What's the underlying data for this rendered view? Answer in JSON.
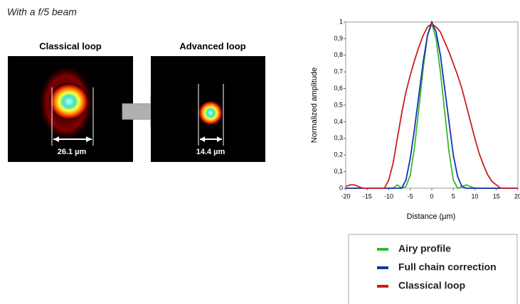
{
  "slide": {
    "caption": "With a f/5 beam",
    "images": [
      {
        "label": "Classical loop",
        "measure": "26.1 µm"
      },
      {
        "label": "Advanced loop",
        "measure": "14.4 µm"
      }
    ]
  },
  "chart_data": {
    "type": "line",
    "ylabel": "Normalized amplitude",
    "xlabel": "Distance (µm)",
    "x": [
      -20,
      -19,
      -18,
      -17,
      -16,
      -15,
      -14,
      -13,
      -12,
      -11,
      -10,
      -9,
      -8,
      -7,
      -6,
      -5,
      -4,
      -3,
      -2,
      -1,
      0,
      1,
      2,
      3,
      4,
      5,
      6,
      7,
      8,
      9,
      10,
      11,
      12,
      13,
      14,
      15,
      16,
      17,
      18,
      19,
      20
    ],
    "series": [
      {
        "name": "Airy profile",
        "color": "#33bb33",
        "values": [
          0,
          0,
          0,
          0,
          0,
          0,
          0,
          0,
          0,
          0,
          0,
          0,
          0.02,
          0,
          0.01,
          0.08,
          0.25,
          0.48,
          0.72,
          0.92,
          0.99,
          0.9,
          0.7,
          0.46,
          0.22,
          0.05,
          0,
          0.01,
          0.02,
          0.01,
          0,
          0,
          0,
          0,
          0,
          0,
          0,
          0,
          0,
          0,
          0
        ]
      },
      {
        "name": "Full chain correction",
        "color": "#1a2fb0",
        "values": [
          0,
          0,
          0,
          0,
          0,
          0,
          0,
          0,
          0,
          0,
          0,
          0,
          0,
          0,
          0.05,
          0.18,
          0.36,
          0.56,
          0.76,
          0.92,
          1,
          0.94,
          0.8,
          0.6,
          0.4,
          0.2,
          0.07,
          0.01,
          0,
          0,
          0,
          0,
          0,
          0,
          0,
          0,
          0,
          0,
          0,
          0,
          0
        ]
      },
      {
        "name": "Classical loop",
        "color": "#cc1f1f",
        "values": [
          0.01,
          0.02,
          0.02,
          0.01,
          0,
          0,
          0,
          0,
          0,
          0,
          0.05,
          0.15,
          0.3,
          0.45,
          0.58,
          0.68,
          0.77,
          0.85,
          0.92,
          0.97,
          0.99,
          0.97,
          0.94,
          0.88,
          0.82,
          0.75,
          0.68,
          0.6,
          0.5,
          0.4,
          0.3,
          0.21,
          0.14,
          0.08,
          0.04,
          0.02,
          0,
          0,
          0,
          0,
          0
        ]
      }
    ],
    "xlim": [
      -20,
      20
    ],
    "xticks": [
      -20,
      -15,
      -10,
      -5,
      0,
      5,
      10,
      15,
      20
    ],
    "ylim": [
      0,
      1
    ],
    "yticks": [
      0,
      {
        "value": 0.1,
        "label": "0,1"
      },
      {
        "value": 0.2,
        "label": "0,2"
      },
      {
        "value": 0.3,
        "label": "0,3"
      },
      {
        "value": 0.4,
        "label": "0,4"
      },
      {
        "value": 0.5,
        "label": "0,5"
      },
      {
        "value": 0.6,
        "label": "0,6"
      },
      {
        "value": 0.7,
        "label": "0,7"
      },
      {
        "value": 0.8,
        "label": "0,8"
      },
      {
        "value": 0.9,
        "label": "0,9"
      },
      1
    ],
    "grid": false
  }
}
